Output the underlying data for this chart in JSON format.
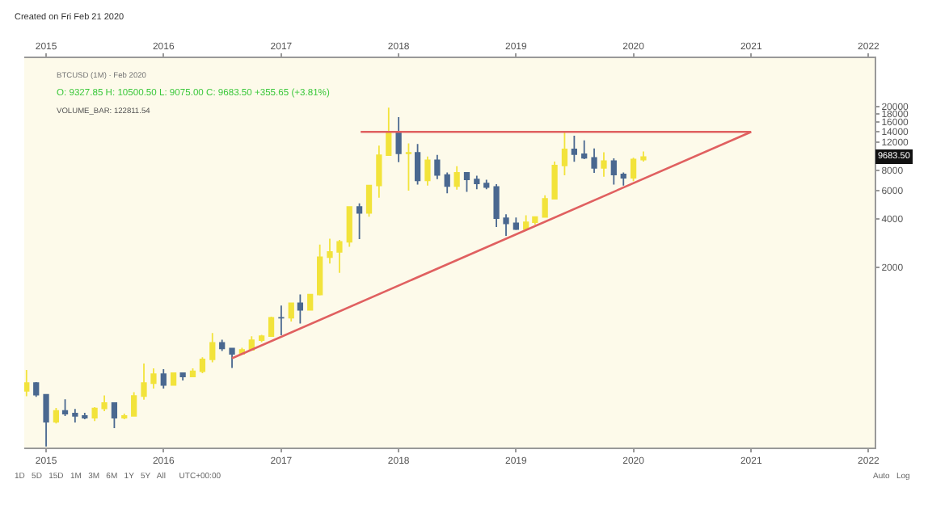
{
  "chart_data": {
    "type": "candlestick",
    "log": true,
    "grid": false,
    "xlim": [
      "2014-10-25",
      "2022-01-20"
    ],
    "xticks": [
      {
        "value": "2015",
        "label": "2015"
      },
      {
        "value": "2016",
        "label": "2016"
      },
      {
        "value": "2017",
        "label": "2017"
      },
      {
        "value": "2018",
        "label": "2018"
      },
      {
        "value": "2019",
        "label": "2019"
      },
      {
        "value": "2020",
        "label": "2020"
      },
      {
        "value": "2021",
        "label": "2021"
      },
      {
        "value": "2022",
        "label": "2022"
      }
    ],
    "x2lim": [
      "2014-10-25",
      "2022-01-20"
    ],
    "x2ticks": [
      {
        "value": "2015",
        "label": "2015"
      },
      {
        "value": "2016",
        "label": "2016"
      },
      {
        "value": "2017",
        "label": "2017"
      },
      {
        "value": "2018",
        "label": "2018"
      },
      {
        "value": "2019",
        "label": "2019"
      },
      {
        "value": "2020",
        "label": "2020"
      },
      {
        "value": "2021",
        "label": "2021"
      },
      {
        "value": "2022",
        "label": "2022"
      }
    ],
    "ylim": [
      150,
      40000
    ],
    "yticks": [
      2000,
      4000,
      6000,
      8000,
      12000,
      14000,
      16000,
      18000,
      20000
    ],
    "series": [
      {
        "type": "line",
        "color": "#e06060",
        "x": [
          "2017-09-05",
          "2021-01-01"
        ],
        "values": [
          13900,
          13900
        ]
      },
      {
        "type": "line",
        "color": "#e06060",
        "x": [
          "2016-08-01",
          "2021-01-01"
        ],
        "values": [
          540,
          13900
        ]
      },
      {
        "colors": [
          "#f2e33b",
          "#4a6890",
          "#4a6890",
          "#f2e33b",
          "#4a6890",
          "#4a6890",
          "#4a6890",
          "#f2e33b",
          "#f2e33b",
          "#4a6890",
          "#f2e33b",
          "#f2e33b",
          "#f2e33b",
          "#f2e33b",
          "#4a6890",
          "#f2e33b",
          "#4a6890",
          "#f2e33b",
          "#f2e33b",
          "#f2e33b",
          "#4a6890",
          "#4a6890",
          "#f2e33b",
          "#f2e33b",
          "#f2e33b",
          "#f2e33b",
          "#4a6890",
          "#f2e33b",
          "#4a6890",
          "#f2e33b",
          "#f2e33b",
          "#f2e33b",
          "#f2e33b",
          "#f2e33b",
          "#4a6890",
          "#f2e33b",
          "#f2e33b",
          "#f2e33b",
          "#4a6890",
          "#f2e33b",
          "#4a6890",
          "#f2e33b",
          "#4a6890",
          "#4a6890",
          "#f2e33b",
          "#4a6890",
          "#4a6890",
          "#4a6890",
          "#4a6890",
          "#4a6890",
          "#4a6890",
          "#f2e33b",
          "#f2e33b",
          "#f2e33b",
          "#f2e33b",
          "#f2e33b",
          "#4a6890",
          "#4a6890",
          "#4a6890",
          "#f2e33b",
          "#4a6890",
          "#4a6890",
          "#f2e33b",
          "#f2e33b"
        ],
        "x": [
          "2014-11",
          "2014-12",
          "2015-01",
          "2015-02",
          "2015-03",
          "2015-04",
          "2015-05",
          "2015-06",
          "2015-07",
          "2015-08",
          "2015-09",
          "2015-10",
          "2015-11",
          "2015-12",
          "2016-01",
          "2016-02",
          "2016-03",
          "2016-04",
          "2016-05",
          "2016-06",
          "2016-07",
          "2016-08",
          "2016-09",
          "2016-10",
          "2016-11",
          "2016-12",
          "2017-01",
          "2017-02",
          "2017-03",
          "2017-04",
          "2017-05",
          "2017-06",
          "2017-07",
          "2017-08",
          "2017-09",
          "2017-10",
          "2017-11",
          "2017-12",
          "2018-01",
          "2018-02",
          "2018-03",
          "2018-04",
          "2018-05",
          "2018-06",
          "2018-07",
          "2018-08",
          "2018-09",
          "2018-10",
          "2018-11",
          "2018-12",
          "2019-01",
          "2019-02",
          "2019-03",
          "2019-04",
          "2019-05",
          "2019-06",
          "2019-07",
          "2019-08",
          "2019-09",
          "2019-10",
          "2019-11",
          "2019-12",
          "2020-01",
          "2020-02"
        ],
        "ohlc": [
          [
            338,
            457,
            313,
            378
          ],
          [
            378,
            384,
            310,
            320
          ],
          [
            320,
            320,
            152,
            217
          ],
          [
            217,
            265,
            212,
            254
          ],
          [
            254,
            300,
            236,
            244
          ],
          [
            244,
            261,
            215,
            236
          ],
          [
            236,
            247,
            225,
            230
          ],
          [
            230,
            268,
            219,
            263
          ],
          [
            263,
            317,
            253,
            284
          ],
          [
            284,
            285,
            198,
            230
          ],
          [
            230,
            244,
            225,
            236
          ],
          [
            236,
            332,
            236,
            314
          ],
          [
            314,
            500,
            298,
            378
          ],
          [
            378,
            467,
            350,
            430
          ],
          [
            430,
            462,
            350,
            368
          ],
          [
            368,
            440,
            365,
            436
          ],
          [
            436,
            438,
            393,
            416
          ],
          [
            416,
            467,
            415,
            448
          ],
          [
            448,
            548,
            436,
            531
          ],
          [
            531,
            775,
            510,
            673
          ],
          [
            673,
            704,
            600,
            622
          ],
          [
            622,
            627,
            470,
            574
          ],
          [
            574,
            628,
            570,
            609
          ],
          [
            609,
            740,
            603,
            699
          ],
          [
            699,
            755,
            680,
            742
          ],
          [
            742,
            980,
            739,
            966
          ],
          [
            966,
            1150,
            750,
            965
          ],
          [
            965,
            1200,
            915,
            1190
          ],
          [
            1190,
            1350,
            888,
            1080
          ],
          [
            1080,
            1350,
            1075,
            1348
          ],
          [
            1348,
            2760,
            1330,
            2300
          ],
          [
            2300,
            3000,
            2100,
            2480
          ],
          [
            2480,
            2950,
            1840,
            2870
          ],
          [
            2870,
            4740,
            2670,
            4730
          ],
          [
            4730,
            4980,
            2980,
            4340
          ],
          [
            4340,
            6450,
            4110,
            6440
          ],
          [
            6440,
            11400,
            5400,
            9950
          ],
          [
            9950,
            19666,
            9900,
            13850
          ],
          [
            13850,
            17170,
            9000,
            10200
          ],
          [
            10200,
            11790,
            5970,
            10300
          ],
          [
            10300,
            11680,
            6530,
            6930
          ],
          [
            6930,
            9760,
            6430,
            9240
          ],
          [
            9240,
            9990,
            7050,
            7490
          ],
          [
            7490,
            7770,
            5760,
            6390
          ],
          [
            6390,
            8500,
            6070,
            7730
          ],
          [
            7730,
            7750,
            5880,
            7020
          ],
          [
            7020,
            7400,
            6100,
            6630
          ],
          [
            6630,
            7000,
            6100,
            6300
          ],
          [
            6300,
            6550,
            3550,
            4030
          ],
          [
            4030,
            4260,
            3120,
            3740
          ],
          [
            3740,
            4070,
            3400,
            3440
          ],
          [
            3440,
            4200,
            3380,
            3800
          ],
          [
            3800,
            4140,
            3670,
            4100
          ],
          [
            4100,
            5600,
            4090,
            5320
          ],
          [
            5320,
            9080,
            5320,
            8570
          ],
          [
            8570,
            13880,
            7460,
            10800
          ],
          [
            10800,
            13150,
            9050,
            10080
          ],
          [
            10080,
            12300,
            9400,
            9580
          ],
          [
            9580,
            10950,
            7710,
            8290
          ],
          [
            8290,
            10370,
            7300,
            9150
          ],
          [
            9150,
            9500,
            6530,
            7540
          ],
          [
            7540,
            7750,
            6430,
            7190
          ],
          [
            7190,
            9580,
            6850,
            9350
          ],
          [
            9327.85,
            10500.5,
            9075,
            9683.5
          ]
        ]
      }
    ],
    "annotations": [
      "Created on Fri Feb 21 2020",
      "BTCUSD (1M) · Feb 2020",
      "O: 9327.85 H: 10500.50 L: 9075.00 C: 9683.50 +355.65 (+3.81%)",
      "VOLUME_BAR: 122811.54",
      "1D   5D   15D   1M   3M   6M   1Y   5Y   All      UTC+00:00",
      "Auto   Log",
      {
        "text": "9683.50",
        "y": 9683.5
      }
    ]
  }
}
